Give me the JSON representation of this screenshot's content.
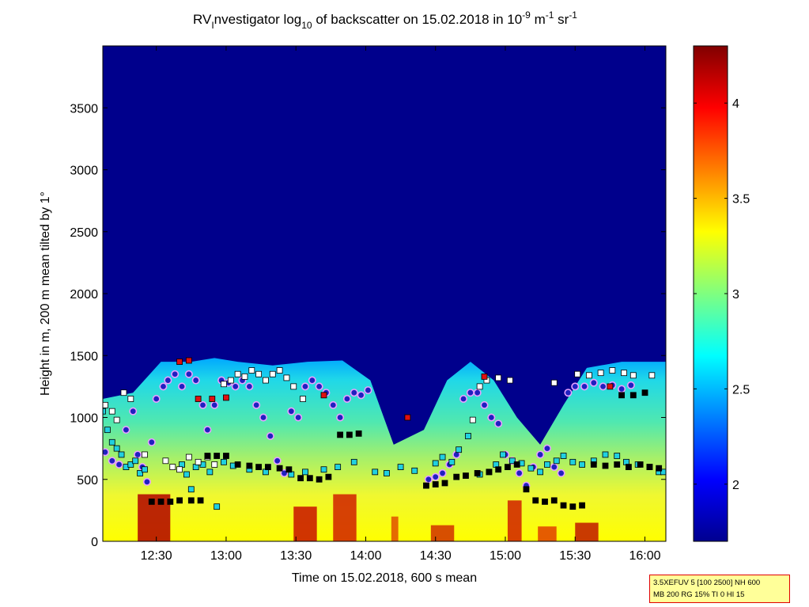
{
  "chart_data": {
    "type": "heatmap",
    "title_parts": {
      "prefix": "RV",
      "sub1": "I",
      "mid": "nvestigator log",
      "sub2": "10",
      "rest": " of backscatter on 15.02.2018 in 10",
      "sup1": "-9",
      "unit1": " m",
      "sup2": "-1",
      "unit2": " sr",
      "sup3": "-1"
    },
    "xlabel": "Time on 15.02.2018, 600 s mean",
    "ylabel": "Height in m, 200 m mean tilted by 1°",
    "x_ticks": [
      "12:30",
      "13:00",
      "13:30",
      "14:00",
      "14:30",
      "15:00",
      "15:30",
      "16:00"
    ],
    "x_tick_values_min": [
      750,
      780,
      810,
      840,
      870,
      900,
      930,
      960
    ],
    "xlim_min": [
      727,
      969
    ],
    "y_ticks": [
      0,
      500,
      1000,
      1500,
      2000,
      2500,
      3000,
      3500
    ],
    "ylim": [
      0,
      4000
    ],
    "colorbar": {
      "ticks": [
        2,
        2.5,
        3,
        3.5,
        4
      ],
      "clim": [
        1.7,
        4.3
      ],
      "colormap": "jet"
    },
    "backscatter_top_height_m": [
      {
        "t": 727,
        "h": 1150
      },
      {
        "t": 740,
        "h": 1200
      },
      {
        "t": 752,
        "h": 1450
      },
      {
        "t": 765,
        "h": 1450
      },
      {
        "t": 775,
        "h": 1480
      },
      {
        "t": 785,
        "h": 1450
      },
      {
        "t": 800,
        "h": 1420
      },
      {
        "t": 815,
        "h": 1450
      },
      {
        "t": 830,
        "h": 1460
      },
      {
        "t": 842,
        "h": 1300
      },
      {
        "t": 852,
        "h": 780
      },
      {
        "t": 865,
        "h": 900
      },
      {
        "t": 875,
        "h": 1300
      },
      {
        "t": 885,
        "h": 1450
      },
      {
        "t": 895,
        "h": 1300
      },
      {
        "t": 905,
        "h": 1000
      },
      {
        "t": 915,
        "h": 780
      },
      {
        "t": 925,
        "h": 1100
      },
      {
        "t": 935,
        "h": 1400
      },
      {
        "t": 950,
        "h": 1450
      },
      {
        "t": 969,
        "h": 1450
      }
    ],
    "series": [
      {
        "marker": "circle",
        "color": "#2020c0",
        "points": [
          [
            728,
            720
          ],
          [
            731,
            650
          ],
          [
            734,
            620
          ],
          [
            737,
            900
          ],
          [
            740,
            1050
          ],
          [
            742,
            700
          ],
          [
            744,
            600
          ],
          [
            746,
            480
          ],
          [
            748,
            800
          ],
          [
            750,
            1150
          ],
          [
            753,
            1250
          ],
          [
            755,
            1300
          ],
          [
            758,
            1350
          ],
          [
            761,
            1250
          ],
          [
            764,
            1350
          ],
          [
            767,
            1300
          ],
          [
            770,
            1100
          ],
          [
            772,
            900
          ],
          [
            775,
            1100
          ],
          [
            778,
            1300
          ],
          [
            781,
            1280
          ],
          [
            784,
            1250
          ],
          [
            787,
            1300
          ],
          [
            790,
            1250
          ],
          [
            793,
            1100
          ],
          [
            796,
            1000
          ],
          [
            799,
            850
          ],
          [
            802,
            650
          ],
          [
            805,
            550
          ],
          [
            808,
            1050
          ],
          [
            811,
            1000
          ],
          [
            814,
            1250
          ],
          [
            817,
            1300
          ],
          [
            820,
            1250
          ],
          [
            823,
            1200
          ],
          [
            826,
            1100
          ],
          [
            829,
            1000
          ],
          [
            832,
            1150
          ],
          [
            835,
            1200
          ],
          [
            838,
            1180
          ],
          [
            841,
            1220
          ],
          [
            867,
            500
          ],
          [
            870,
            520
          ],
          [
            873,
            550
          ],
          [
            876,
            620
          ],
          [
            879,
            700
          ],
          [
            882,
            1150
          ],
          [
            885,
            1200
          ],
          [
            888,
            1200
          ],
          [
            891,
            1100
          ],
          [
            894,
            1000
          ],
          [
            897,
            950
          ],
          [
            900,
            700
          ],
          [
            903,
            650
          ],
          [
            906,
            550
          ],
          [
            909,
            450
          ],
          [
            912,
            600
          ],
          [
            915,
            700
          ],
          [
            918,
            750
          ],
          [
            921,
            600
          ],
          [
            924,
            550
          ],
          [
            927,
            1200
          ],
          [
            930,
            1250
          ],
          [
            934,
            1250
          ],
          [
            938,
            1280
          ],
          [
            942,
            1250
          ],
          [
            946,
            1260
          ],
          [
            950,
            1230
          ],
          [
            954,
            1260
          ]
        ]
      },
      {
        "marker": "square",
        "color": "#20d0e0",
        "points": [
          [
            727,
            1050
          ],
          [
            729,
            900
          ],
          [
            731,
            800
          ],
          [
            733,
            750
          ],
          [
            735,
            700
          ],
          [
            737,
            600
          ],
          [
            739,
            620
          ],
          [
            741,
            650
          ],
          [
            743,
            550
          ],
          [
            745,
            580
          ],
          [
            761,
            620
          ],
          [
            763,
            540
          ],
          [
            765,
            420
          ],
          [
            767,
            600
          ],
          [
            770,
            620
          ],
          [
            773,
            560
          ],
          [
            776,
            280
          ],
          [
            779,
            640
          ],
          [
            783,
            610
          ],
          [
            790,
            580
          ],
          [
            797,
            560
          ],
          [
            808,
            540
          ],
          [
            814,
            560
          ],
          [
            822,
            580
          ],
          [
            828,
            600
          ],
          [
            835,
            640
          ],
          [
            844,
            560
          ],
          [
            849,
            550
          ],
          [
            855,
            600
          ],
          [
            861,
            570
          ],
          [
            870,
            630
          ],
          [
            873,
            680
          ],
          [
            877,
            640
          ],
          [
            880,
            740
          ],
          [
            884,
            850
          ],
          [
            889,
            540
          ],
          [
            893,
            560
          ],
          [
            896,
            620
          ],
          [
            899,
            700
          ],
          [
            903,
            650
          ],
          [
            907,
            630
          ],
          [
            911,
            590
          ],
          [
            915,
            560
          ],
          [
            918,
            620
          ],
          [
            922,
            650
          ],
          [
            925,
            690
          ],
          [
            929,
            640
          ],
          [
            933,
            620
          ],
          [
            938,
            650
          ],
          [
            943,
            700
          ],
          [
            948,
            690
          ],
          [
            952,
            640
          ],
          [
            957,
            620
          ],
          [
            962,
            600
          ],
          [
            966,
            560
          ],
          [
            968,
            560
          ]
        ]
      },
      {
        "marker": "square",
        "color": "#ffffff",
        "points": [
          [
            728,
            1100
          ],
          [
            731,
            1050
          ],
          [
            733,
            980
          ],
          [
            736,
            1200
          ],
          [
            739,
            1150
          ],
          [
            745,
            700
          ],
          [
            754,
            650
          ],
          [
            757,
            600
          ],
          [
            760,
            580
          ],
          [
            764,
            680
          ],
          [
            768,
            640
          ],
          [
            772,
            680
          ],
          [
            775,
            620
          ],
          [
            779,
            1270
          ],
          [
            782,
            1300
          ],
          [
            785,
            1350
          ],
          [
            788,
            1330
          ],
          [
            791,
            1380
          ],
          [
            794,
            1350
          ],
          [
            797,
            1300
          ],
          [
            800,
            1350
          ],
          [
            803,
            1380
          ],
          [
            806,
            1320
          ],
          [
            809,
            1250
          ],
          [
            813,
            1150
          ],
          [
            886,
            980
          ],
          [
            889,
            1250
          ],
          [
            892,
            1300
          ],
          [
            897,
            1320
          ],
          [
            902,
            1300
          ],
          [
            921,
            1280
          ],
          [
            931,
            1350
          ],
          [
            936,
            1340
          ],
          [
            941,
            1360
          ],
          [
            946,
            1380
          ],
          [
            951,
            1360
          ],
          [
            955,
            1340
          ],
          [
            963,
            1340
          ]
        ]
      },
      {
        "marker": "square",
        "color": "#000000",
        "points": [
          [
            748,
            320
          ],
          [
            752,
            320
          ],
          [
            756,
            320
          ],
          [
            760,
            330
          ],
          [
            765,
            330
          ],
          [
            769,
            330
          ],
          [
            772,
            690
          ],
          [
            776,
            690
          ],
          [
            780,
            690
          ],
          [
            785,
            620
          ],
          [
            790,
            610
          ],
          [
            794,
            600
          ],
          [
            798,
            600
          ],
          [
            803,
            590
          ],
          [
            807,
            580
          ],
          [
            812,
            510
          ],
          [
            816,
            510
          ],
          [
            820,
            500
          ],
          [
            824,
            520
          ],
          [
            829,
            860
          ],
          [
            833,
            860
          ],
          [
            837,
            870
          ],
          [
            866,
            450
          ],
          [
            870,
            460
          ],
          [
            874,
            470
          ],
          [
            879,
            520
          ],
          [
            883,
            530
          ],
          [
            888,
            550
          ],
          [
            893,
            560
          ],
          [
            897,
            580
          ],
          [
            901,
            600
          ],
          [
            905,
            620
          ],
          [
            909,
            420
          ],
          [
            913,
            330
          ],
          [
            917,
            320
          ],
          [
            921,
            330
          ],
          [
            925,
            290
          ],
          [
            929,
            280
          ],
          [
            933,
            290
          ],
          [
            938,
            620
          ],
          [
            943,
            610
          ],
          [
            948,
            620
          ],
          [
            953,
            600
          ],
          [
            958,
            620
          ],
          [
            962,
            600
          ],
          [
            966,
            590
          ],
          [
            950,
            1180
          ],
          [
            955,
            1180
          ],
          [
            960,
            1200
          ]
        ]
      },
      {
        "marker": "square",
        "color": "#e01010",
        "points": [
          [
            760,
            1450
          ],
          [
            764,
            1460
          ],
          [
            768,
            1150
          ],
          [
            774,
            1150
          ],
          [
            780,
            1160
          ],
          [
            822,
            1180
          ],
          [
            858,
            1000
          ],
          [
            891,
            1330
          ],
          [
            945,
            1250
          ]
        ]
      }
    ]
  },
  "info_box": {
    "line1": "3.5XEFUV 5 [100 2500] NH 600",
    "line2": "MB 200 RG 15% TI 0 HI 15"
  }
}
